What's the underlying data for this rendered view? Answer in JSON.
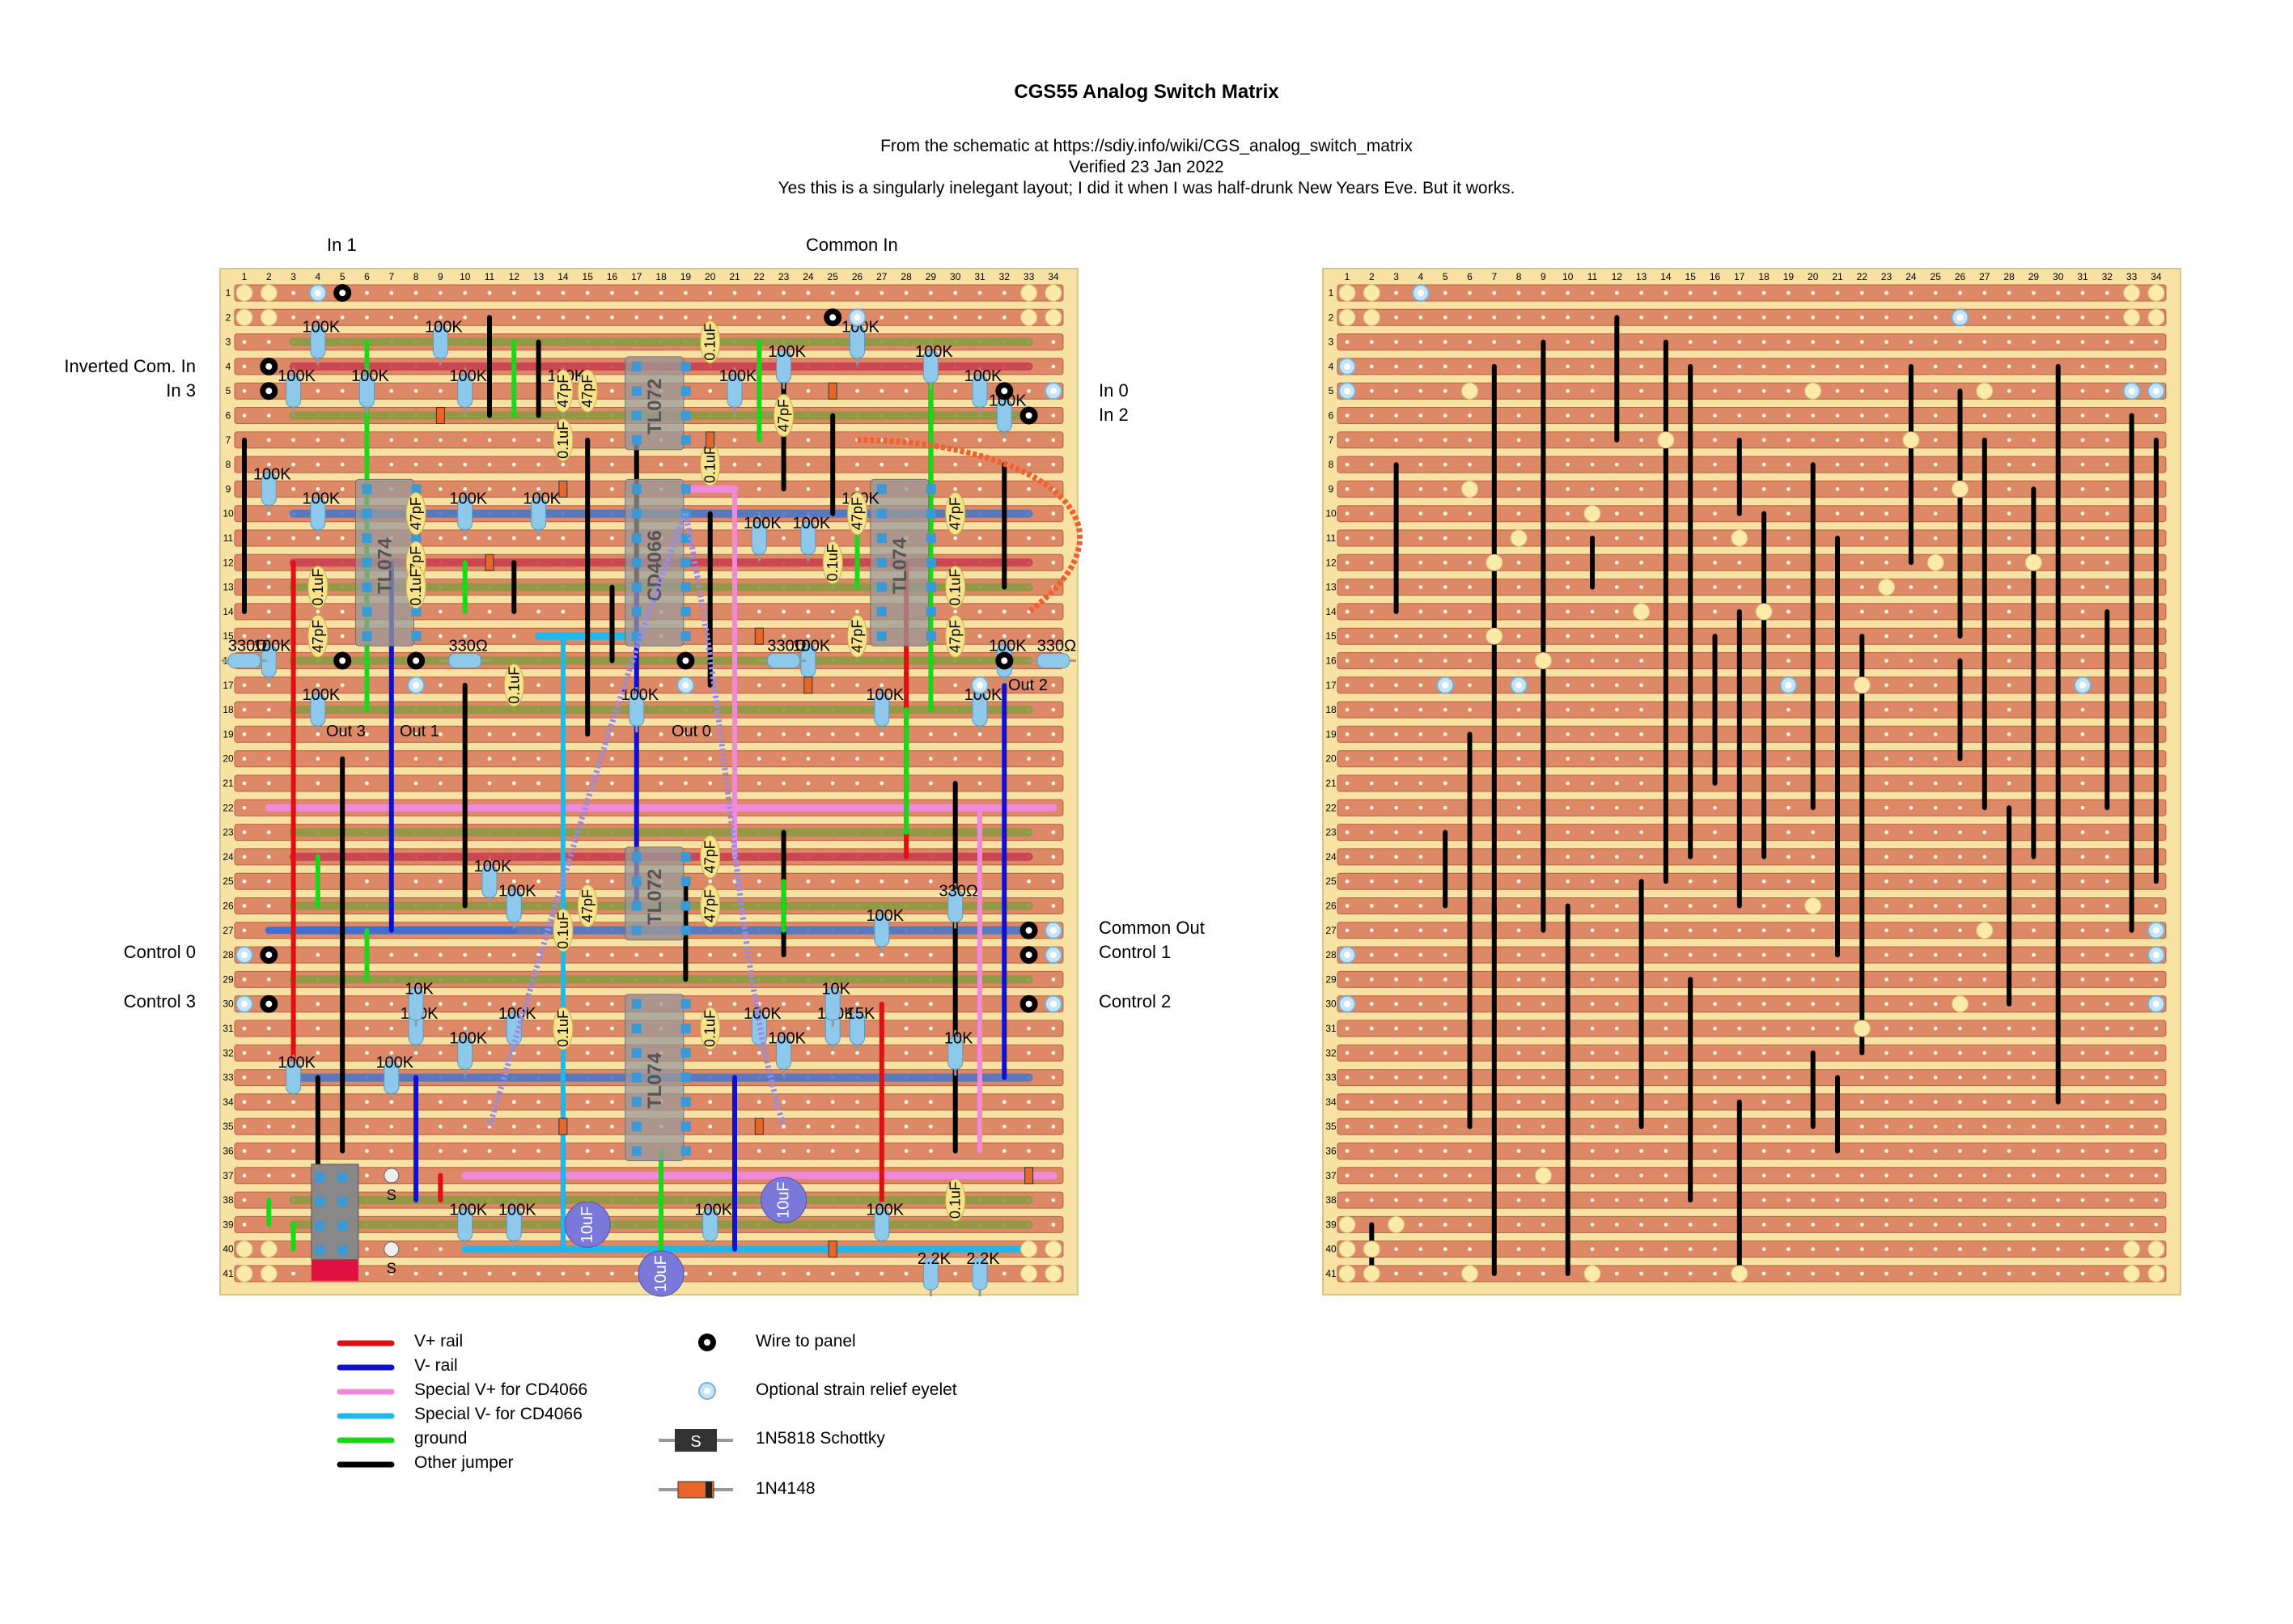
{
  "header": {
    "title": "CGS55 Analog Switch Matrix",
    "line1": "From the schematic at https://sdiy.info/wiki/CGS_analog_switch_matrix",
    "line2": "Verified 23 Jan 2022",
    "line3": "Yes this is a singularly inelegant layout; I did it when I was half-drunk New Years Eve. But it works."
  },
  "board_labels": {
    "in1": "In 1",
    "common_in": "Common In",
    "inverted_com_in": "Inverted Com. In",
    "in3": "In 3",
    "in0": "In 0",
    "in2": "In 2",
    "control0": "Control 0",
    "control3": "Control 3",
    "common_out": "Common Out",
    "control1": "Control 1",
    "control2": "Control 2",
    "out3": "Out 3",
    "out1": "Out 1",
    "out0": "Out 0",
    "out2": "Out 2"
  },
  "grid": {
    "columns": 34,
    "rows": 41
  },
  "ics": [
    "TL074",
    "TL072",
    "CD4066",
    "TL074",
    "TL072",
    "TL074"
  ],
  "component_values": [
    "100K",
    "47pF",
    "0.1uF",
    "330Ω",
    "10K",
    "15K",
    "2.2K",
    "10uF",
    "S"
  ],
  "legend": {
    "items": [
      {
        "label": "V+ rail",
        "color": "#e01010"
      },
      {
        "label": "V- rail",
        "color": "#1010d0"
      },
      {
        "label": "Special V+ for CD4066",
        "color": "#f08ad8"
      },
      {
        "label": "Special V- for CD4066",
        "color": "#20b8e8"
      },
      {
        "label": "ground",
        "color": "#18d818"
      },
      {
        "label": "Other jumper",
        "color": "#000000"
      }
    ],
    "symbols": [
      {
        "label": "Wire to panel",
        "icon": "wire-to-panel-icon"
      },
      {
        "label": "Optional strain relief eyelet",
        "icon": "eyelet-icon"
      },
      {
        "label": "1N5818 Schottky",
        "icon": "schottky-diode-icon"
      },
      {
        "label": "1N4148",
        "icon": "signal-diode-icon"
      }
    ]
  },
  "colors": {
    "board": "#f7e2a4",
    "strip": "#dd8866",
    "strip_edge": "#b86040",
    "hole": "#fff5dc",
    "vplus": "#e01010",
    "vminus": "#1010d0",
    "special_vplus": "#f08ad8",
    "special_vminus": "#20b8e8",
    "ground": "#18d818",
    "jumper": "#000000",
    "ground_strip": "#8a9a40",
    "vminus_strip": "#4b78c8",
    "vplus_strip": "#c84050"
  }
}
